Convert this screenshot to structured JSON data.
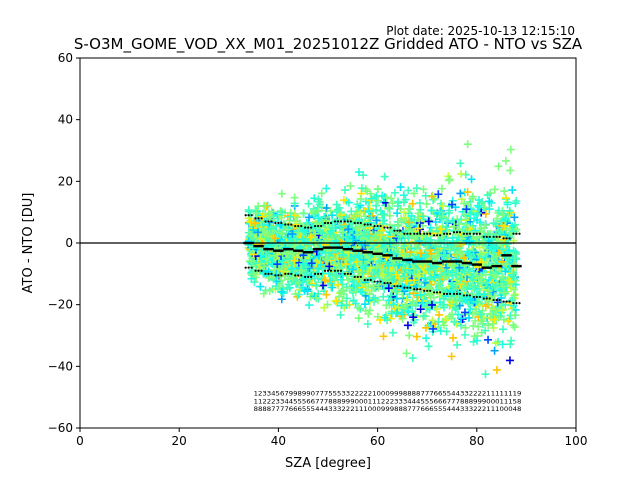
{
  "chart_data": {
    "type": "scatter",
    "title": "S-O3M_GOME_VOD_XX_M01_20251012Z Gridded ATO - NTO vs SZA",
    "plot_date": "Plot date: 2025-10-13 12:15:10",
    "xlabel": "SZA [degree]",
    "ylabel": "ATO - NTO [DU]",
    "xlim": [
      0,
      100
    ],
    "ylim": [
      -60,
      60
    ],
    "xticks": [
      "0",
      "20",
      "40",
      "60",
      "80",
      "100"
    ],
    "yticks": [
      "60",
      "40",
      "20",
      "0",
      "−20",
      "−40",
      "−60"
    ],
    "xtick_values": [
      0,
      20,
      40,
      60,
      80,
      100
    ],
    "ytick_values": [
      60,
      40,
      20,
      0,
      -20,
      -40,
      -60
    ],
    "zero_line": 0,
    "scatter": {
      "marker": "+",
      "sza_range": [
        34,
        88
      ],
      "point_colors": [
        "#7fff7f",
        "#3fffbf",
        "#1fffdf",
        "#00e4f8",
        "#00a4ff",
        "#0044ff",
        "#0000e8",
        "#bfff3f",
        "#ffe500",
        "#ffc400"
      ]
    },
    "series": [
      {
        "name": "mean",
        "style": "black-square-markers",
        "x": [
          34,
          36,
          38,
          40,
          42,
          44,
          46,
          48,
          50,
          52,
          54,
          56,
          58,
          60,
          62,
          64,
          66,
          68,
          70,
          72,
          74,
          76,
          78,
          80,
          82,
          84,
          86,
          88
        ],
        "y": [
          0,
          -1,
          -2,
          -2.5,
          -2,
          -2.5,
          -3,
          -2,
          -1.5,
          -1.5,
          -2,
          -2.5,
          -3,
          -3.5,
          -4,
          -5,
          -5.5,
          -6,
          -6,
          -6.5,
          -6,
          -6,
          -6.5,
          -7,
          -8,
          -7.5,
          -4,
          -7.5
        ]
      },
      {
        "name": "upper-std",
        "style": "black-dots",
        "x": [
          34,
          36,
          38,
          40,
          42,
          44,
          46,
          48,
          50,
          52,
          54,
          56,
          58,
          60,
          62,
          64,
          66,
          68,
          70,
          72,
          74,
          76,
          78,
          80,
          82,
          84,
          86,
          88
        ],
        "y": [
          9,
          8,
          7,
          6.5,
          6,
          5.5,
          5,
          5.5,
          6.5,
          7,
          7,
          6.5,
          6,
          5.5,
          5,
          4,
          3,
          3,
          3,
          2.5,
          3,
          3.5,
          3,
          3,
          2,
          2,
          1.5,
          3
        ]
      },
      {
        "name": "lower-std",
        "style": "black-dots",
        "x": [
          34,
          36,
          38,
          40,
          42,
          44,
          46,
          48,
          50,
          52,
          54,
          56,
          58,
          60,
          62,
          64,
          66,
          68,
          70,
          72,
          74,
          76,
          78,
          80,
          82,
          84,
          86,
          88
        ],
        "y": [
          -8,
          -9,
          -10,
          -10.5,
          -10,
          -10.5,
          -11,
          -10,
          -9,
          -9,
          -10,
          -11,
          -12,
          -12.5,
          -13,
          -14,
          -14.5,
          -15,
          -15.5,
          -16,
          -16.5,
          -16.5,
          -17,
          -17.5,
          -18,
          -18.5,
          -19,
          -19.5
        ]
      }
    ],
    "count_labels": {
      "rows": [
        "1233456799899077755533222221000999888877766554433222211111119",
        "1122233445556677788899900011122233344455566677788899900011158",
        "8888777766655544433322211100099988877766655544433322211100048"
      ],
      "row_y_values": [
        -49.5,
        -52,
        -54.5
      ],
      "x_start": 35,
      "x_end": 89
    }
  }
}
